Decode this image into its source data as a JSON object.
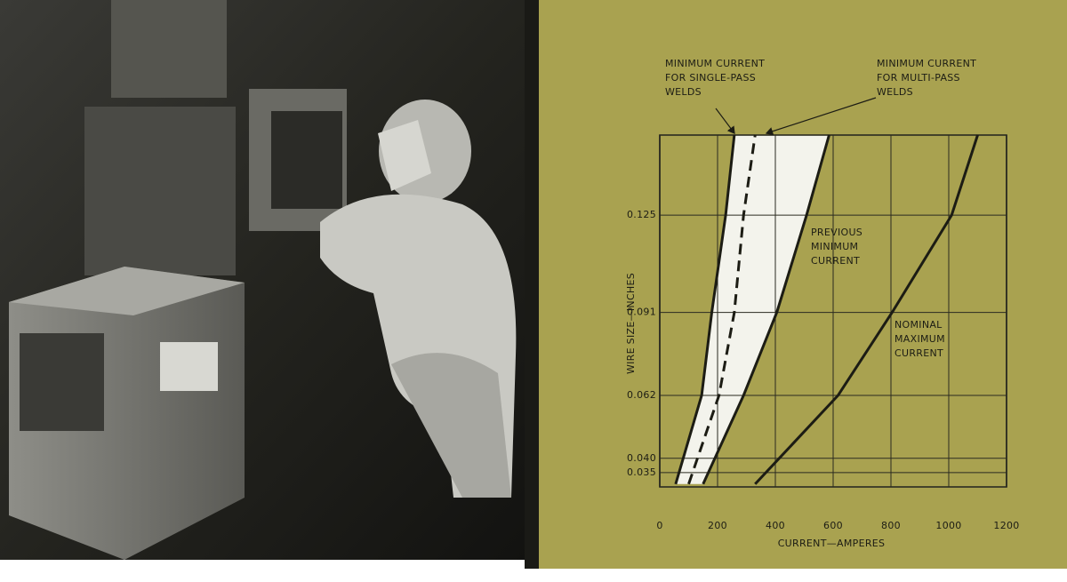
{
  "chart_data": {
    "type": "line",
    "x_label": "CURRENT—AMPERES",
    "y_label": "WIRE SIZE—INCHES",
    "xlim": [
      0,
      1200
    ],
    "ylim": [
      0.03,
      0.153
    ],
    "xticks": [
      0,
      200,
      400,
      600,
      800,
      1000,
      1200
    ],
    "yticks": [
      {
        "value": 0.035,
        "label": "0.035"
      },
      {
        "value": 0.04,
        "label": "0.040"
      },
      0.062,
      0.091,
      0.125
    ],
    "grid": true,
    "series": [
      {
        "color": "#1c1c14",
        "dashed": false,
        "x": [
          55,
          145,
          180,
          228,
          258
        ],
        "values": [
          0.031,
          0.062,
          0.091,
          0.125,
          0.153
        ]
      },
      {
        "color": "#1c1c14",
        "dashed": true,
        "x": [
          100,
          205,
          258,
          290,
          330
        ],
        "values": [
          0.031,
          0.062,
          0.091,
          0.125,
          0.153
        ]
      },
      {
        "color": "#1c1c14",
        "dashed": false,
        "x": [
          150,
          290,
          405,
          508,
          586
        ],
        "values": [
          0.031,
          0.062,
          0.091,
          0.125,
          0.153
        ]
      },
      {
        "color": "#1c1c14",
        "dashed": false,
        "x": [
          330,
          617,
          804,
          1010,
          1100
        ],
        "values": [
          0.031,
          0.062,
          0.091,
          0.125,
          0.153
        ]
      }
    ],
    "band_color": "#f3f3ec",
    "background": "#a9a250",
    "annotations": [
      {
        "lines": [
          "MINIMUM CURRENT",
          "FOR SINGLE-PASS",
          "WELDS"
        ]
      },
      {
        "lines": [
          "MINIMUM CURRENT",
          "FOR MULTI-PASS",
          "WELDS"
        ]
      },
      {
        "lines": [
          "PREVIOUS",
          "MINIMUM",
          "CURRENT"
        ]
      },
      {
        "lines": [
          "NOMINAL",
          "MAXIMUM",
          "CURRENT"
        ]
      }
    ]
  }
}
